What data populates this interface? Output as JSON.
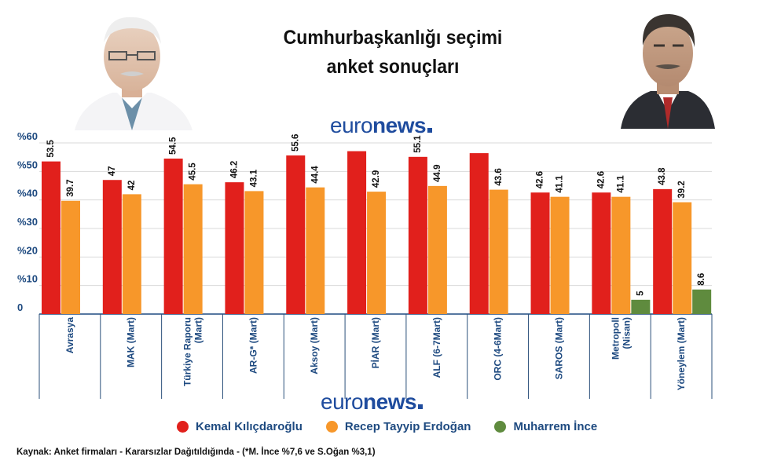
{
  "title": {
    "line1": "Cumhurbaşkanlığı seçimi",
    "line2": "anket sonuçları"
  },
  "brand": {
    "light": "euro",
    "bold": "news"
  },
  "legend": [
    {
      "label": "Kemal Kılıçdaroğlu",
      "color": "#e1201c"
    },
    {
      "label": "Recep Tayyip Erdoğan",
      "color": "#f7972a"
    },
    {
      "label": "Muharrem İnce",
      "color": "#5f8b3e"
    }
  ],
  "source": "Kaynak: Anket firmaları - Kararsızlar Dağıtıldığında - (*M. İnce %7,6 ve S.Oğan %3,1)",
  "photos": [
    {
      "name": "Kemal Kılıçdaroğlu photo",
      "icon": "portrait-man-white-hair"
    },
    {
      "name": "Recep Tayyip Erdoğan photo",
      "icon": "portrait-man-dark-suit"
    }
  ],
  "chart_data": {
    "type": "bar",
    "categories": [
      [
        "Avrasya"
      ],
      [
        "MAK (Mart)"
      ],
      [
        "Türkiye Raporu",
        "(Mart)"
      ],
      [
        "AR-G* (Mart)"
      ],
      [
        "Aksoy (Mart)"
      ],
      [
        "PİAR (Mart)"
      ],
      [
        "ALF (6-7Mart)"
      ],
      [
        "ORC (4-6Mart)"
      ],
      [
        "SAROS (Mart)"
      ],
      [
        "Metropoll",
        "(Nisan)"
      ],
      [
        "Yöneylem (Mart)"
      ]
    ],
    "series": [
      {
        "name": "Kemal Kılıçdaroğlu",
        "color": "#e1201c",
        "values": [
          53.5,
          47,
          54.5,
          46.2,
          55.6,
          57.1,
          55.1,
          56.4,
          42.6,
          42.6,
          43.8
        ],
        "labels": [
          "53.5",
          "47",
          "54.5",
          "46.2",
          "55.6",
          "",
          "55.1",
          "",
          "42.6",
          "42.6",
          "43.8"
        ]
      },
      {
        "name": "Recep Tayyip Erdoğan",
        "color": "#f7972a",
        "values": [
          39.7,
          42,
          45.5,
          43.1,
          44.4,
          42.9,
          44.9,
          43.6,
          41.1,
          41.1,
          39.2
        ],
        "labels": [
          "39.7",
          "42",
          "45.5",
          "43.1",
          "44.4",
          "42.9",
          "44.9",
          "43.6",
          "41.1",
          "41.1",
          "39.2"
        ]
      },
      {
        "name": "Muharrem İnce",
        "color": "#5f8b3e",
        "values": [
          null,
          null,
          null,
          null,
          null,
          null,
          null,
          null,
          null,
          5,
          8.6
        ],
        "labels": [
          "",
          "",
          "",
          "",
          "",
          "",
          "",
          "",
          "",
          "5",
          "8.6"
        ]
      }
    ],
    "y_ticks": [
      {
        "value": 0,
        "label": "0"
      },
      {
        "value": 10,
        "label": "%10"
      },
      {
        "value": 20,
        "label": "%20"
      },
      {
        "value": 30,
        "label": "%30"
      },
      {
        "value": 40,
        "label": "%40"
      },
      {
        "value": 50,
        "label": "%50"
      },
      {
        "value": 60,
        "label": "%60"
      }
    ],
    "ylim": [
      0,
      60
    ],
    "grid": true,
    "legend_position": "bottom",
    "xlabel": "",
    "ylabel": ""
  }
}
